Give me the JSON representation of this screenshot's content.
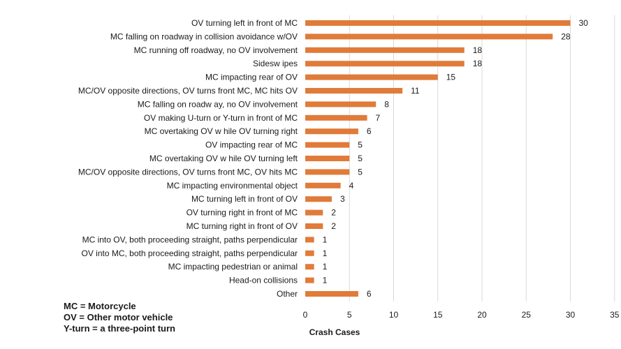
{
  "chart_data": {
    "type": "bar",
    "orientation": "horizontal",
    "categories": [
      "OV turning left in front of MC",
      "MC falling on roadway in collision avoidance w/OV",
      "MC running off roadway, no OV involvement",
      "Sidesw ipes",
      "MC impacting rear of OV",
      "MC/OV  opposite directions, OV turns front MC, MC hits OV",
      "MC falling on roadw ay, no OV involvement",
      "OV making  U-turn or Y-turn in front of MC",
      "MC overtaking OV w hile OV turning right",
      "OV impacting rear of MC",
      "MC  overtaking OV w hile OV turning left",
      "MC/OV  opposite directions, OV turns front MC,  OV hits MC",
      "MC impacting environmental object",
      "MC turning left in front of OV",
      "OV turning right in front of MC",
      "MC turning right in front of OV",
      "MC into OV, both proceeding straight, paths perpendicular",
      "OV into MC,  both proceeding straight, paths perpendicular",
      "MC impacting pedestrian or animal",
      "Head-on collisions",
      "Other"
    ],
    "values": [
      30,
      28,
      18,
      18,
      15,
      11,
      8,
      7,
      6,
      5,
      5,
      5,
      4,
      3,
      2,
      2,
      1,
      1,
      1,
      1,
      6
    ],
    "value_labels": [
      "30",
      "28",
      "18",
      "18",
      "15",
      "11",
      "8",
      "7",
      "6",
      "5",
      "5",
      "5",
      "4",
      "3",
      "2",
      "2",
      "1",
      "1",
      "1",
      "1",
      "6"
    ],
    "xlabel": "Crash Cases",
    "xlim": [
      0,
      35
    ],
    "xticks": [
      0,
      5,
      10,
      15,
      20,
      25,
      30,
      35
    ],
    "xtick_labels": [
      "0",
      "5",
      "10",
      "15",
      "20",
      "25",
      "30",
      "35"
    ],
    "grid": "vertical",
    "bar_color": "#e07b39",
    "grid_color": "#d9d9d9"
  },
  "legend_notes": [
    "MC = Motorcycle",
    "OV = Other motor vehicle",
    "Y-turn = a three-point turn"
  ]
}
